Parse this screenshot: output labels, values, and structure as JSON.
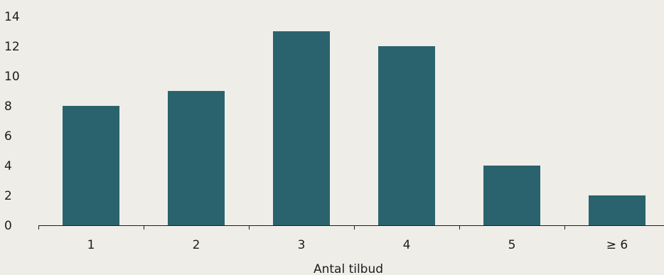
{
  "chart_data": {
    "type": "bar",
    "categories": [
      "1",
      "2",
      "3",
      "4",
      "5",
      "≥ 6"
    ],
    "values": [
      8,
      9,
      13,
      12,
      4,
      2
    ],
    "title": "",
    "xlabel": "Antal tilbud",
    "ylabel": "",
    "ylim": [
      0,
      14
    ],
    "yticks": [
      0,
      2,
      4,
      6,
      8,
      10,
      12,
      14
    ],
    "grid": false,
    "bar_color": "#2a636e",
    "background_color": "#efede8",
    "axis_color": "#1d1d1d"
  }
}
